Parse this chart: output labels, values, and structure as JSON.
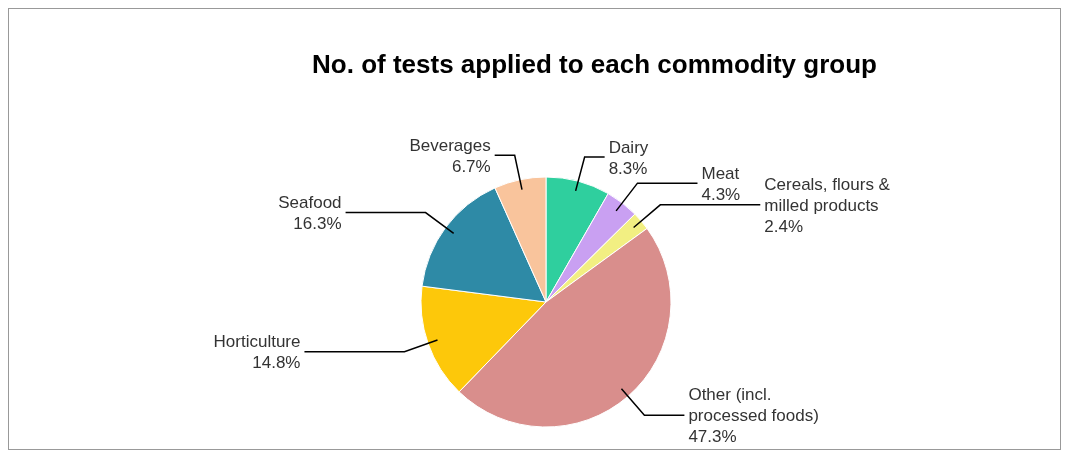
{
  "chart_data": {
    "type": "pie",
    "title": "No. of tests applied to each commodity group",
    "categories": [
      "Dairy",
      "Meat",
      "Cereals, flours & milled products",
      "Other (incl. processed foods)",
      "Horticulture",
      "Seafood",
      "Beverages"
    ],
    "values": [
      8.3,
      4.3,
      2.4,
      47.3,
      14.8,
      16.3,
      6.7
    ],
    "value_labels": [
      "8.3%",
      "4.3%",
      "2.4%",
      "47.3%",
      "14.8%",
      "16.3%",
      "6.7%"
    ],
    "colors": [
      "#2fcf9e",
      "#c9a0f2",
      "#f2ef82",
      "#d98e8c",
      "#fdc80a",
      "#2e8aa6",
      "#f9c49c"
    ],
    "legend": false
  }
}
